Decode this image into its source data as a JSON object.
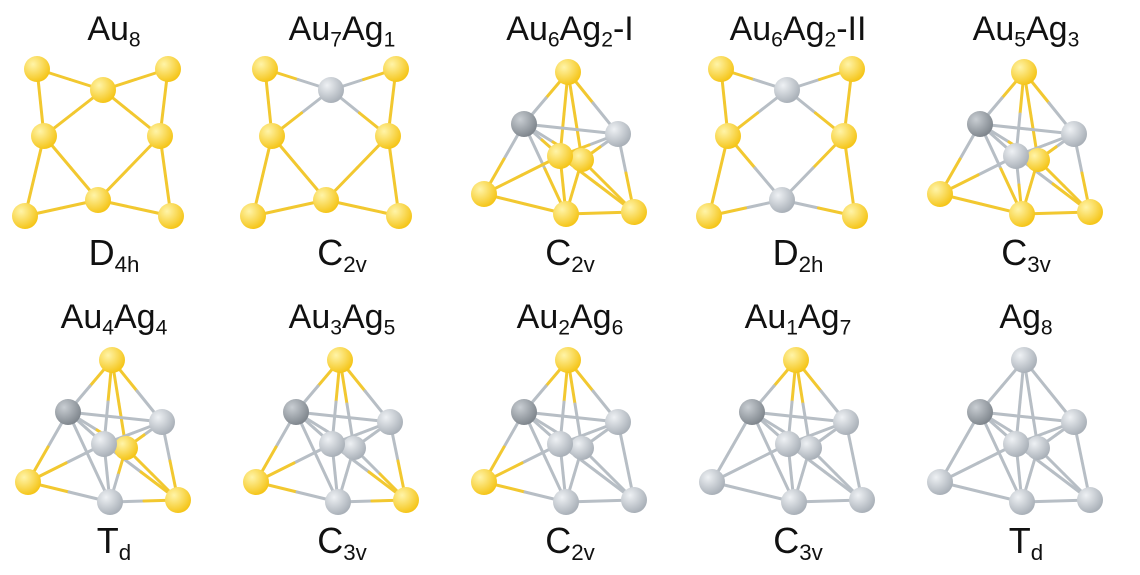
{
  "colors": {
    "gold": "#f5c518",
    "silver": "#a9b0b8",
    "dark_silver": "#7f868d"
  },
  "clusters": [
    {
      "id": "au8",
      "formula": [
        [
          "Au",
          "8"
        ]
      ],
      "symmetry": [
        [
          "D",
          "4h"
        ]
      ],
      "au": 8,
      "ag": 0,
      "motif": "planar"
    },
    {
      "id": "au7ag1",
      "formula": [
        [
          "Au",
          "7"
        ],
        [
          "Ag",
          "1"
        ]
      ],
      "symmetry": [
        [
          "C",
          "2v"
        ]
      ],
      "au": 7,
      "ag": 1,
      "motif": "planar"
    },
    {
      "id": "au6ag2-i",
      "formula": [
        [
          "Au",
          "6"
        ],
        [
          "Ag",
          "2"
        ],
        [
          "-I",
          ""
        ]
      ],
      "symmetry": [
        [
          "C",
          "2v"
        ]
      ],
      "au": 6,
      "ag": 2,
      "motif": "cage"
    },
    {
      "id": "au6ag2-ii",
      "formula": [
        [
          "Au",
          "6"
        ],
        [
          "Ag",
          "2"
        ],
        [
          "-II",
          ""
        ]
      ],
      "symmetry": [
        [
          "D",
          "2h"
        ]
      ],
      "au": 6,
      "ag": 2,
      "motif": "planar"
    },
    {
      "id": "au5ag3",
      "formula": [
        [
          "Au",
          "5"
        ],
        [
          "Ag",
          "3"
        ]
      ],
      "symmetry": [
        [
          "C",
          "3v"
        ]
      ],
      "au": 5,
      "ag": 3,
      "motif": "cage"
    },
    {
      "id": "au4ag4",
      "formula": [
        [
          "Au",
          "4"
        ],
        [
          "Ag",
          "4"
        ]
      ],
      "symmetry": [
        [
          "T",
          "d"
        ]
      ],
      "au": 4,
      "ag": 4,
      "motif": "cage"
    },
    {
      "id": "au3ag5",
      "formula": [
        [
          "Au",
          "3"
        ],
        [
          "Ag",
          "5"
        ]
      ],
      "symmetry": [
        [
          "C",
          "3v"
        ]
      ],
      "au": 3,
      "ag": 5,
      "motif": "cage"
    },
    {
      "id": "au2ag6",
      "formula": [
        [
          "Au",
          "2"
        ],
        [
          "Ag",
          "6"
        ]
      ],
      "symmetry": [
        [
          "C",
          "2v"
        ]
      ],
      "au": 2,
      "ag": 6,
      "motif": "cage"
    },
    {
      "id": "au1ag7",
      "formula": [
        [
          "Au",
          "1"
        ],
        [
          "Ag",
          "7"
        ]
      ],
      "symmetry": [
        [
          "C",
          "3v"
        ]
      ],
      "au": 1,
      "ag": 7,
      "motif": "cage"
    },
    {
      "id": "ag8",
      "formula": [
        [
          "Ag",
          "8"
        ]
      ],
      "symmetry": [
        [
          "T",
          "d"
        ]
      ],
      "au": 0,
      "ag": 8,
      "motif": "cage"
    }
  ]
}
